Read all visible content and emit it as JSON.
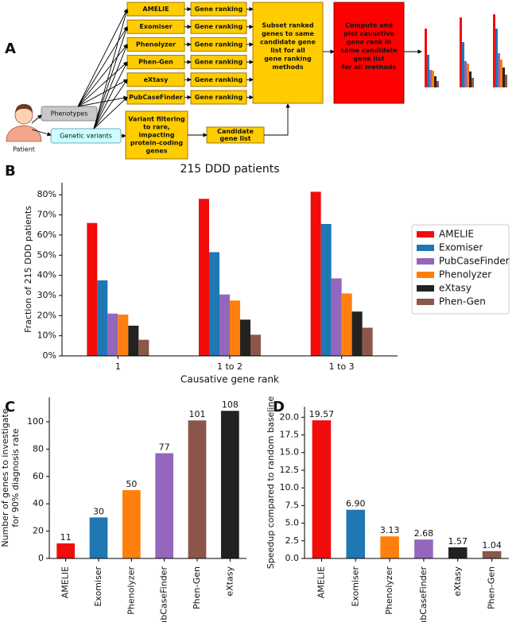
{
  "panel_labels": [
    "A",
    "B",
    "C",
    "D"
  ],
  "diagram": {
    "tools": [
      "AMELIE",
      "Exomiser",
      "Phenolyzer",
      "Phen-Gen",
      "eXtasy",
      "PubCaseFinder"
    ],
    "ranking_labels": [
      "Gene ranking",
      "Gene ranking",
      "Gene ranking",
      "Gene ranking",
      "Gene ranking",
      "Gene ranking"
    ],
    "subset": [
      "Subset ranked",
      "genes to same",
      "candidate gene",
      "list for all",
      "gene ranking",
      "methods"
    ],
    "compute": [
      "Compute and",
      "plot causative",
      "gene rank in",
      "same candidate",
      "gene list",
      "for all methods"
    ],
    "patient": "Patient",
    "phenotypes": "Phenotypes",
    "variants": "Genetic variants",
    "filtering": [
      "Variant filtering",
      "to rare,",
      "impacting",
      "protein-coding",
      "genes"
    ],
    "candidate": [
      "Candidate",
      "gene list"
    ]
  },
  "chart_data": [
    {
      "type": "bar",
      "title": "215 DDD patients",
      "xlabel": "Causative gene rank",
      "ylabel": [
        "Fraction of 215 DDD patients"
      ],
      "categories": [
        "1",
        "1 to 2",
        "1 to 3"
      ],
      "series": [
        {
          "name": "AMELIE",
          "color": "#f20c0c",
          "values": [
            66,
            78,
            81.5
          ]
        },
        {
          "name": "Exomiser",
          "color": "#1f77b4",
          "values": [
            37.5,
            51.5,
            65.5
          ]
        },
        {
          "name": "PubCaseFinder",
          "color": "#9467bd",
          "values": [
            21,
            30.5,
            38.5
          ]
        },
        {
          "name": "Phenolyzer",
          "color": "#ff7f0e",
          "values": [
            20.5,
            27.5,
            31
          ]
        },
        {
          "name": "eXtasy",
          "color": "#222222",
          "values": [
            15,
            18,
            22
          ]
        },
        {
          "name": "Phen-Gen",
          "color": "#8c564b",
          "values": [
            8,
            10.5,
            14
          ]
        }
      ],
      "ylim": [
        0,
        86
      ],
      "yticks": [
        {
          "value": 0,
          "label": "0%"
        },
        {
          "value": 10,
          "label": "10%"
        },
        {
          "value": 20,
          "label": "20%"
        },
        {
          "value": 30,
          "label": "30%"
        },
        {
          "value": 40,
          "label": "40%"
        },
        {
          "value": 50,
          "label": "50%"
        },
        {
          "value": 60,
          "label": "60%"
        },
        {
          "value": 70,
          "label": "70%"
        },
        {
          "value": 80,
          "label": "80%"
        }
      ],
      "legend": "right"
    },
    {
      "type": "bar",
      "ylabel": [
        "Number of genes to investigate",
        "for 90% diagnosis rate"
      ],
      "categories": [
        "AMELIE",
        "Exomiser",
        "Phenolyzer",
        "PubCaseFinder",
        "Phen-Gen",
        "eXtasy"
      ],
      "values": [
        11,
        30,
        50,
        77,
        101,
        108
      ],
      "colors": [
        "#f20c0c",
        "#1f77b4",
        "#ff7f0e",
        "#9467bd",
        "#8c564b",
        "#222222"
      ],
      "ylim": [
        0,
        118
      ],
      "yticks": [
        0,
        20,
        40,
        60,
        80,
        100
      ],
      "data_labels": true,
      "xtick_rotation": 90
    },
    {
      "type": "bar",
      "ylabel": [
        "Speedup compared to random baseline"
      ],
      "categories": [
        "AMELIE",
        "Exomiser",
        "Phenolyzer",
        "PubCaseFinder",
        "eXtasy",
        "Phen-Gen"
      ],
      "values": [
        19.57,
        6.9,
        3.13,
        2.68,
        1.57,
        1.04
      ],
      "value_labels": [
        "19.57",
        "6.90",
        "3.13",
        "2.68",
        "1.57",
        "1.04"
      ],
      "colors": [
        "#f20c0c",
        "#1f77b4",
        "#ff7f0e",
        "#9467bd",
        "#222222",
        "#8c564b"
      ],
      "ylim": [
        0,
        21.5
      ],
      "yticks": [
        {
          "value": 0,
          "label": "0.0"
        },
        2.5,
        {
          "value": 5,
          "label": "5.0"
        },
        7.5,
        {
          "value": 10,
          "label": "10.0"
        },
        12.5,
        {
          "value": 15,
          "label": "15.0"
        },
        17.5,
        {
          "value": 20,
          "label": "20.0"
        }
      ],
      "data_labels": true,
      "xtick_rotation": 90
    }
  ]
}
